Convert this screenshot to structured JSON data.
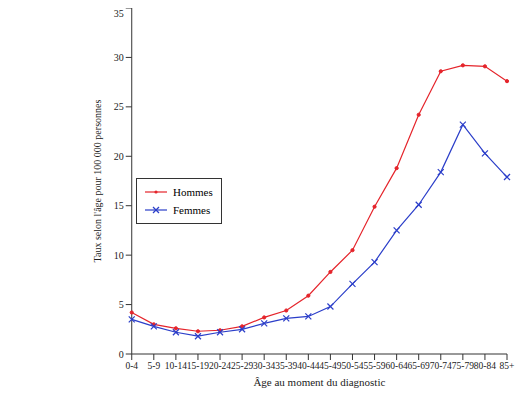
{
  "chart_data": {
    "type": "line",
    "x_label": "Âge au moment du diagnostic",
    "y_label": "Taux selon l'âge pour 100 000 personnes",
    "categories": [
      "0-4",
      "5-9",
      "10-14",
      "15-19",
      "20-24",
      "25-29",
      "30-34",
      "35-39",
      "40-44",
      "45-49",
      "50-54",
      "55-59",
      "60-64",
      "65-69",
      "70-74",
      "75-79",
      "80-84",
      "85+"
    ],
    "series": [
      {
        "name": "Hommes",
        "color": "#e5242b",
        "marker": "circle",
        "values": [
          4.2,
          3.0,
          2.6,
          2.3,
          2.4,
          2.8,
          3.7,
          4.4,
          5.9,
          8.3,
          10.5,
          14.9,
          18.8,
          24.2,
          28.6,
          29.2,
          29.1,
          27.6
        ]
      },
      {
        "name": "Femmes",
        "color": "#2b3ec9",
        "marker": "x",
        "values": [
          3.5,
          2.8,
          2.2,
          1.8,
          2.2,
          2.5,
          3.1,
          3.6,
          3.8,
          4.8,
          7.1,
          9.3,
          12.5,
          15.1,
          18.4,
          23.2,
          20.3,
          17.9
        ]
      }
    ],
    "ylim": [
      0,
      35
    ],
    "yticks": [
      0,
      5,
      10,
      15,
      20,
      25,
      30,
      35
    ],
    "grid": false,
    "legend": "left"
  }
}
